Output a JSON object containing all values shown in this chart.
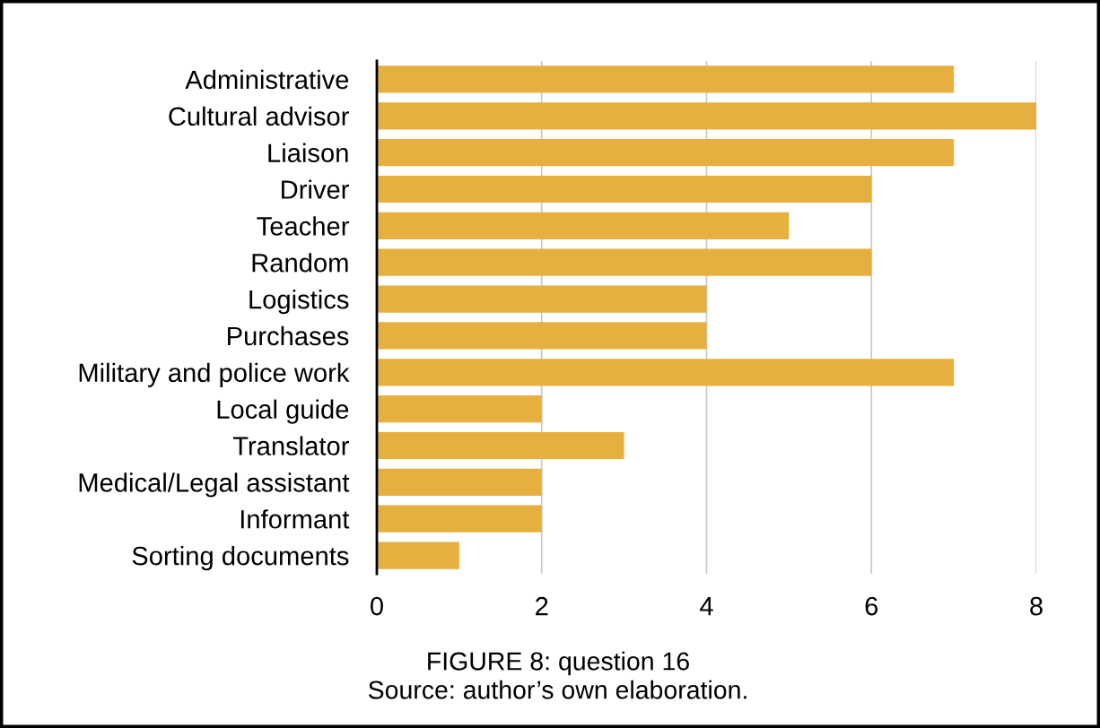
{
  "chart_data": {
    "type": "bar",
    "orientation": "horizontal",
    "categories": [
      "Administrative",
      "Cultural advisor",
      "Liaison",
      "Driver",
      "Teacher",
      "Random",
      "Logistics",
      "Purchases",
      "Military and police work",
      "Local guide",
      "Translator",
      "Medical/Legal assistant",
      "Informant",
      "Sorting documents"
    ],
    "values": [
      7,
      8,
      7,
      6,
      5,
      6,
      4,
      4,
      7,
      2,
      3,
      2,
      2,
      1
    ],
    "color": "#e6b040",
    "xlim": [
      0,
      8
    ],
    "xticks": [
      0,
      2,
      4,
      6,
      8
    ],
    "grid": "x",
    "legend": false,
    "annotations": [
      "FIGURE 8: question 16",
      "Source: author’s own elaboration."
    ]
  }
}
